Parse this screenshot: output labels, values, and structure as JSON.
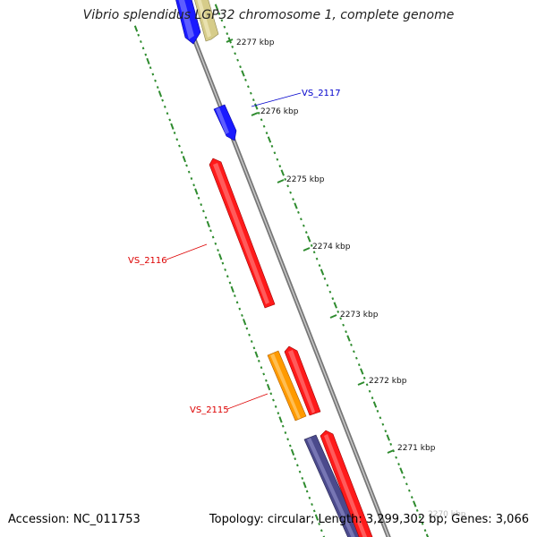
{
  "title": "Vibrio splendidus LGP32 chromosome 1, complete genome",
  "footer": {
    "accession": "Accession: NC_011753",
    "stats": "Topology: circular; Length: 3,299,302 bp; Genes: 3,066"
  },
  "ticks": [
    "2277 kbp",
    "2276 kbp",
    "2275 kbp",
    "2274 kbp",
    "2273 kbp",
    "2272 kbp",
    "2271 kbp",
    "2270 kbp"
  ],
  "gene_labels": [
    {
      "name": "VS_2117",
      "color": "#0000cc"
    },
    {
      "name": "VS_2116",
      "color": "#dd0000"
    },
    {
      "name": "VS_2115",
      "color": "#dd0000"
    }
  ],
  "colors": {
    "backbone": "#8a8a8a",
    "tick_track": "#2e8b2e",
    "gene_blue": "#1a1aff",
    "gene_red": "#ff1a1a",
    "gene_tan": "#d6cc8a",
    "gene_orange": "#ff9a00",
    "gene_slate": "#4b4a8c"
  }
}
